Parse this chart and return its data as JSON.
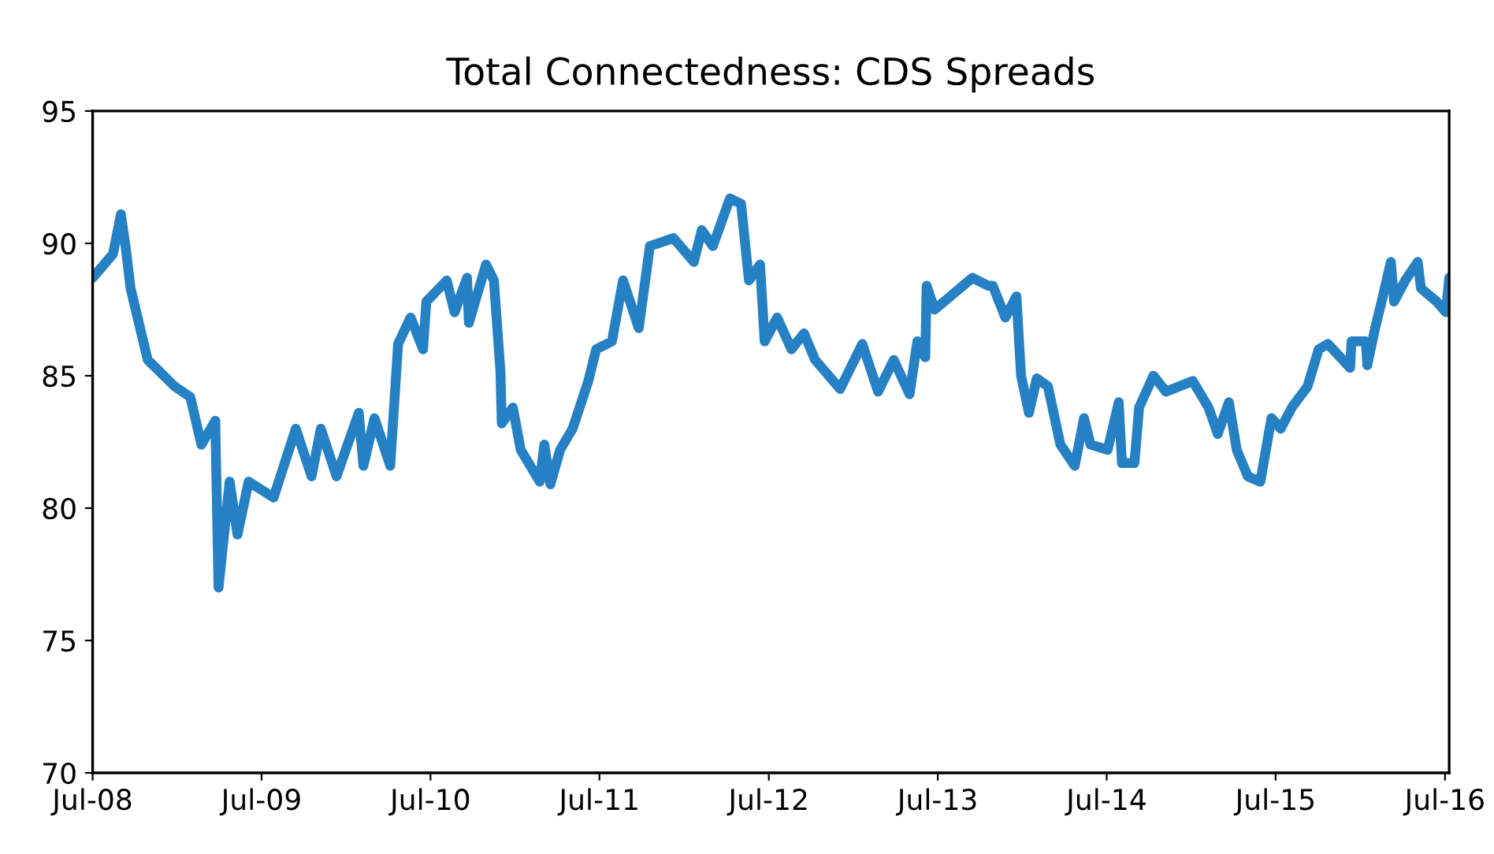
{
  "chart_data": {
    "type": "line",
    "title": "Total Connectedness: CDS Spreads",
    "x": [
      "2008-07-01",
      "2008-08-14",
      "2008-08-31",
      "2008-09-10",
      "2008-09-21",
      "2008-10-28",
      "2008-12-25",
      "2009-01-28",
      "2009-02-21",
      "2009-03-23",
      "2009-03-30",
      "2009-04-23",
      "2009-05-10",
      "2009-06-03",
      "2009-07-27",
      "2009-09-13",
      "2009-10-17",
      "2009-11-06",
      "2009-12-10",
      "2010-01-27",
      "2010-02-06",
      "2010-03-02",
      "2010-04-05",
      "2010-04-22",
      "2010-05-19",
      "2010-06-15",
      "2010-06-22",
      "2010-08-05",
      "2010-08-22",
      "2010-09-18",
      "2010-09-22",
      "2010-10-29",
      "2010-11-15",
      "2010-11-29",
      "2010-12-02",
      "2010-12-26",
      "2011-01-12",
      "2011-02-22",
      "2011-03-04",
      "2011-03-17",
      "2011-04-07",
      "2011-05-04",
      "2011-06-07",
      "2011-06-24",
      "2011-07-28",
      "2011-08-21",
      "2011-09-24",
      "2011-10-18",
      "2011-12-08",
      "2012-01-21",
      "2012-02-07",
      "2012-03-02",
      "2012-04-08",
      "2012-05-02",
      "2012-05-19",
      "2012-06-12",
      "2012-06-22",
      "2012-07-19",
      "2012-08-19",
      "2012-09-15",
      "2012-10-09",
      "2012-12-02",
      "2013-01-19",
      "2013-02-22",
      "2013-03-28",
      "2013-05-01",
      "2013-05-18",
      "2013-06-04",
      "2013-06-07",
      "2013-06-24",
      "2013-09-14",
      "2013-10-18",
      "2013-10-28",
      "2013-11-24",
      "2013-12-18",
      "2013-12-28",
      "2014-01-14",
      "2014-01-31",
      "2014-02-24",
      "2014-03-23",
      "2014-04-23",
      "2014-05-13",
      "2014-05-27",
      "2014-07-03",
      "2014-07-27",
      "2014-08-03",
      "2014-08-30",
      "2014-09-09",
      "2014-10-10",
      "2014-11-06",
      "2015-01-03",
      "2015-02-06",
      "2015-02-26",
      "2015-03-22",
      "2015-04-08",
      "2015-05-02",
      "2015-05-29",
      "2015-06-22",
      "2015-07-12",
      "2015-08-05",
      "2015-09-08",
      "2015-10-02",
      "2015-10-22",
      "2015-12-09",
      "2015-12-12",
      "2016-01-12",
      "2016-01-15",
      "2016-02-01",
      "2016-02-15",
      "2016-03-06",
      "2016-03-13",
      "2016-04-06",
      "2016-05-03",
      "2016-05-10",
      "2016-06-13",
      "2016-07-03",
      "2016-07-10"
    ],
    "series": [
      {
        "color": "#2681c4",
        "values": [
          88.7,
          89.6,
          91.1,
          89.9,
          88.3,
          85.6,
          84.6,
          84.2,
          82.4,
          83.3,
          77.0,
          81.0,
          79.0,
          81.0,
          80.4,
          83.0,
          81.2,
          83.0,
          81.2,
          83.6,
          81.6,
          83.4,
          81.6,
          86.2,
          87.2,
          86.0,
          87.8,
          88.6,
          87.4,
          88.7,
          87.0,
          89.2,
          88.6,
          85.2,
          83.2,
          83.8,
          82.2,
          81.0,
          82.4,
          80.9,
          82.2,
          83.0,
          84.8,
          86.0,
          86.3,
          88.6,
          86.8,
          89.9,
          90.2,
          89.3,
          90.5,
          89.9,
          91.7,
          91.5,
          88.6,
          89.2,
          86.3,
          87.2,
          86.0,
          86.6,
          85.6,
          84.5,
          86.2,
          84.4,
          85.6,
          84.3,
          86.3,
          85.7,
          88.4,
          87.5,
          88.7,
          88.4,
          88.4,
          87.2,
          88.0,
          85.0,
          83.6,
          84.9,
          84.6,
          82.4,
          81.6,
          83.4,
          82.4,
          82.2,
          84.0,
          81.7,
          81.7,
          83.8,
          85.0,
          84.4,
          84.8,
          83.8,
          82.8,
          84.0,
          82.2,
          81.2,
          81.0,
          83.4,
          83.0,
          83.8,
          84.6,
          86.0,
          86.2,
          85.3,
          86.3,
          86.3,
          85.4,
          86.8,
          87.8,
          89.3,
          87.8,
          88.6,
          89.3,
          88.3,
          87.8,
          87.4,
          88.7
        ]
      }
    ],
    "xlim": [
      "2008-07-01",
      "2016-07-10"
    ],
    "xticks": [
      {
        "value": "2008-07-01",
        "label": "Jul-08"
      },
      {
        "value": "2009-07-01",
        "label": "Jul-09"
      },
      {
        "value": "2010-07-01",
        "label": "Jul-10"
      },
      {
        "value": "2011-07-01",
        "label": "Jul-11"
      },
      {
        "value": "2012-07-01",
        "label": "Jul-12"
      },
      {
        "value": "2013-07-01",
        "label": "Jul-13"
      },
      {
        "value": "2014-07-01",
        "label": "Jul-14"
      },
      {
        "value": "2015-07-01",
        "label": "Jul-15"
      },
      {
        "value": "2016-07-01",
        "label": "Jul-16"
      }
    ],
    "ylim": [
      70,
      95
    ],
    "yticks": [
      70,
      75,
      80,
      85,
      90,
      95
    ],
    "grid": false,
    "legend": false,
    "marker": "none",
    "line_style": "solid"
  }
}
